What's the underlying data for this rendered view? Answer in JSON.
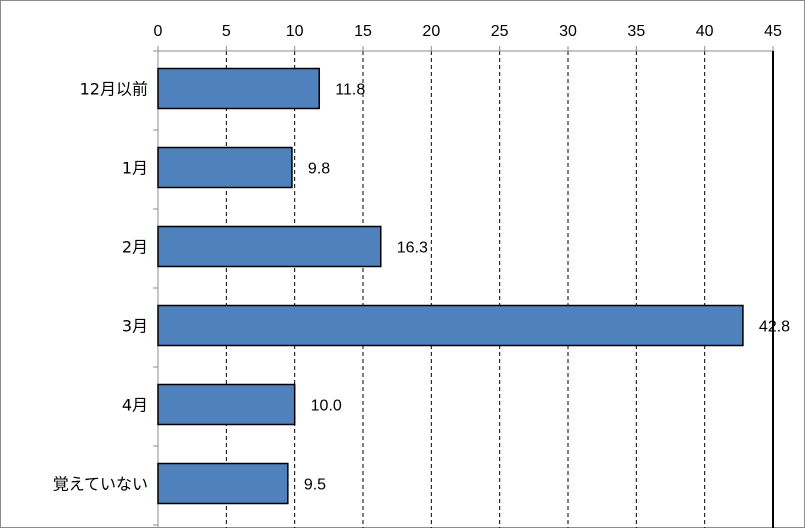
{
  "chart_data": {
    "type": "bar",
    "orientation": "horizontal",
    "categories": [
      "12月以前",
      "1月",
      "2月",
      "3月",
      "4月",
      "覚えていない"
    ],
    "values": [
      11.8,
      9.8,
      16.3,
      42.8,
      10.0,
      9.5
    ],
    "value_labels": [
      "11.8",
      "9.8",
      "16.3",
      "42.8",
      "10.0",
      "9.5"
    ],
    "xlim": [
      0,
      45
    ],
    "ticks": [
      "0",
      "5",
      "10",
      "15",
      "20",
      "25",
      "30",
      "35",
      "40",
      "45"
    ],
    "title": "",
    "xlabel": "",
    "ylabel": "",
    "grid": "vertical dashed",
    "axis_position": "top",
    "bar_color": "#4f81bd",
    "bar_edge_color": "#000000"
  }
}
